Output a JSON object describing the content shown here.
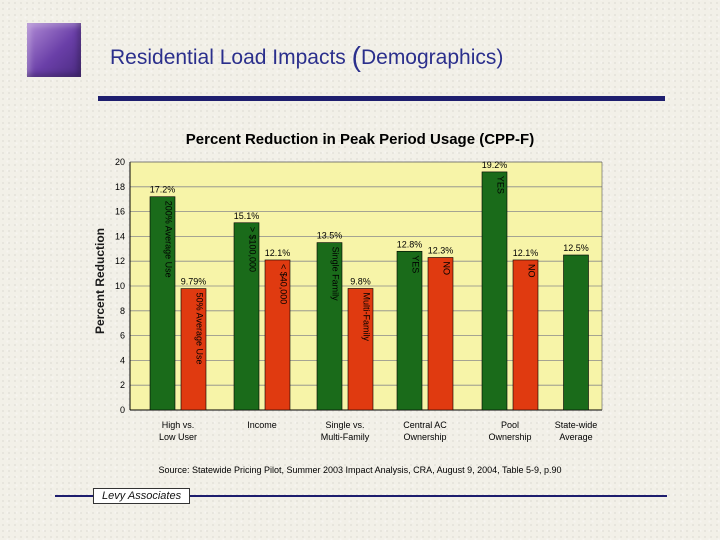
{
  "slide": {
    "title_main": "Residential Load Impacts ",
    "title_open": "(",
    "title_paren": "Demographics)",
    "source": "Source: Statewide Pricing Pilot, Summer 2003 Impact Analysis, CRA, August 9, 2004, Table 5-9, p.90",
    "logo": "Levy Associates"
  },
  "colors": {
    "green": "#1a6b1a",
    "orange": "#e03a10",
    "plot_bg": "#f7f4a8",
    "title": "#2b2f8c",
    "rule": "#1e1e6e"
  },
  "chart_data": {
    "type": "bar",
    "title": "Percent Reduction in Peak Period Usage (CPP-F)",
    "ylabel": "Percent Reduction",
    "xlabel": "",
    "ylim": [
      0,
      20
    ],
    "yticks": [
      0,
      2,
      4,
      6,
      8,
      10,
      12,
      14,
      16,
      18,
      20
    ],
    "grid": true,
    "legend": "none",
    "groups": [
      {
        "category": "High vs. Low User",
        "bars": [
          {
            "label": "200% Average Use",
            "value": 17.2,
            "value_label": "17.2%",
            "color": "green"
          },
          {
            "label": "50% Average Use",
            "value": 9.79,
            "value_label": "9.79%",
            "color": "orange"
          }
        ]
      },
      {
        "category": "Income",
        "bars": [
          {
            "label": "> $100,000",
            "value": 15.1,
            "value_label": "15.1%",
            "color": "green"
          },
          {
            "label": "< $40,000",
            "value": 12.1,
            "value_label": "12.1%",
            "color": "orange"
          }
        ]
      },
      {
        "category": "Single vs. Multi-Family",
        "bars": [
          {
            "label": "Single Family",
            "value": 13.5,
            "value_label": "13.5%",
            "color": "green"
          },
          {
            "label": "Multi-Family",
            "value": 9.8,
            "value_label": "9.8%",
            "color": "orange"
          }
        ]
      },
      {
        "category": "Central AC Ownership",
        "bars": [
          {
            "label": "YES",
            "value": 12.8,
            "value_label": "12.8%",
            "color": "green"
          },
          {
            "label": "NO",
            "value": 12.3,
            "value_label": "12.3%",
            "color": "orange"
          }
        ]
      },
      {
        "category": "Pool Ownership",
        "bars": [
          {
            "label": "YES",
            "value": 19.2,
            "value_label": "19.2%",
            "color": "green"
          },
          {
            "label": "NO",
            "value": 12.1,
            "value_label": "12.1%",
            "color": "orange"
          }
        ]
      },
      {
        "category": "State-wide Average",
        "bars": [
          {
            "label": "",
            "value": 12.5,
            "value_label": "12.5%",
            "color": "green"
          }
        ]
      }
    ]
  }
}
